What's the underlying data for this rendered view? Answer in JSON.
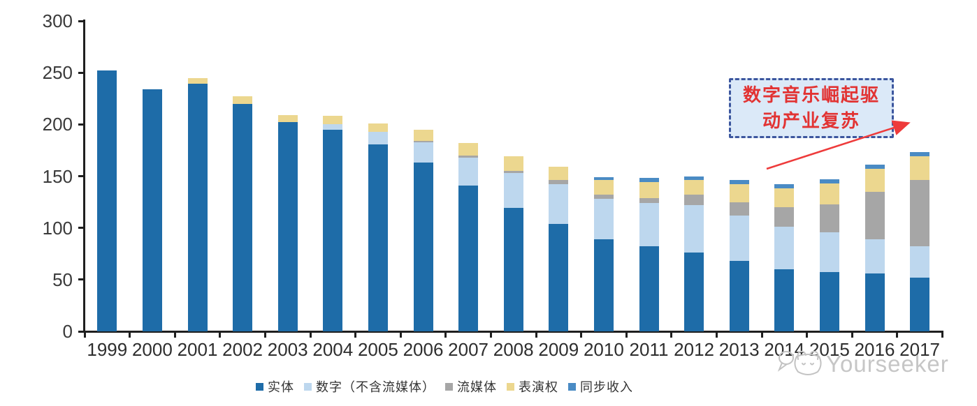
{
  "chart_data": {
    "type": "bar",
    "stacked": true,
    "title": "",
    "xlabel": "",
    "ylabel": "",
    "ylim": [
      0,
      300
    ],
    "yticks": [
      0,
      50,
      100,
      150,
      200,
      250,
      300
    ],
    "grid": false,
    "legend_position": "bottom",
    "categories": [
      "1999",
      "2000",
      "2001",
      "2002",
      "2003",
      "2004",
      "2005",
      "2006",
      "2007",
      "2008",
      "2009",
      "2010",
      "2011",
      "2012",
      "2013",
      "2014",
      "2015",
      "2016",
      "2017"
    ],
    "series": [
      {
        "name": "实体",
        "color": "#1e6ca8",
        "values": [
          252,
          234,
          239,
          220,
          202,
          195,
          181,
          163,
          141,
          119,
          104,
          89,
          82,
          76,
          68,
          60,
          57,
          56,
          52
        ]
      },
      {
        "name": "数字（不含流媒体）",
        "color": "#bdd7ee",
        "values": [
          0,
          0,
          0,
          0,
          0,
          5,
          12,
          20,
          27,
          34,
          38,
          39,
          42,
          46,
          44,
          41,
          39,
          33,
          30
        ]
      },
      {
        "name": "流媒体",
        "color": "#a6a6a6",
        "values": [
          0,
          0,
          0,
          0,
          0,
          0,
          0,
          1,
          2,
          2,
          4,
          4,
          5,
          10,
          13,
          19,
          27,
          46,
          64
        ]
      },
      {
        "name": "表演权",
        "color": "#ecd78f",
        "values": [
          0,
          0,
          6,
          7,
          7,
          8,
          8,
          11,
          12,
          14,
          13,
          14,
          15,
          14,
          17,
          18,
          20,
          22,
          23
        ]
      },
      {
        "name": "同步收入",
        "color": "#4a8bc4",
        "values": [
          0,
          0,
          0,
          0,
          0,
          0,
          0,
          0,
          0,
          0,
          0,
          3,
          4,
          4,
          4,
          4,
          4,
          4,
          4
        ]
      }
    ]
  },
  "annotation": {
    "line1": "数字音乐崛起驱",
    "line2": "动产业复苏",
    "text_color": "#e23333",
    "box_border_color": "#3c569e",
    "box_fill_color": "#dbe9f8",
    "arrow_color": "#ee3b3b"
  },
  "watermark": {
    "text": "Yourseeker",
    "color": "#c6c6c6"
  }
}
